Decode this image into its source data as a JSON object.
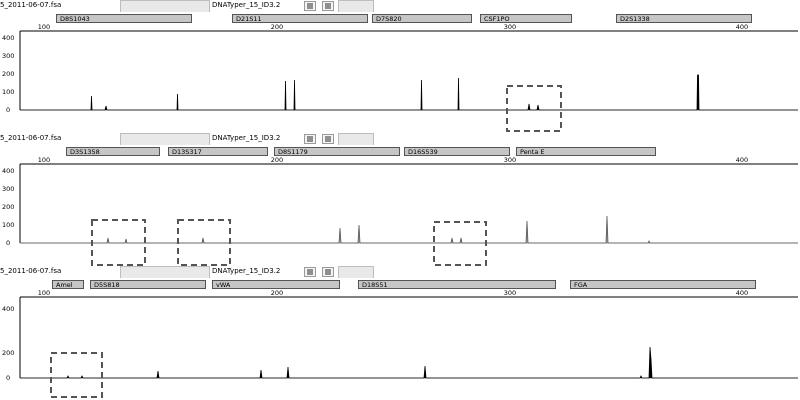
{
  "panels": [
    {
      "file": "5_2011-06-07.fsa",
      "kit": "DNATyper_15_ID3.2",
      "markers": [
        "D8S1043",
        "D21S11",
        "D7S820",
        "CSF1PO",
        "D2S1338"
      ],
      "x_ticks": [
        "100",
        "200",
        "300",
        "400"
      ],
      "y_ticks": [
        "400",
        "300",
        "200",
        "100",
        "0"
      ],
      "color": "#000000"
    },
    {
      "file": "5_2011-06-07.fsa",
      "kit": "DNATyper_15_ID3.2",
      "markers": [
        "D3S1358",
        "D13S317",
        "D8S1179",
        "D16S539",
        "Penta E"
      ],
      "x_ticks": [
        "100",
        "200",
        "300",
        "400"
      ],
      "y_ticks": [
        "400",
        "300",
        "200",
        "100",
        "0"
      ],
      "color": "#555555"
    },
    {
      "file": "5_2011-06-07.fsa",
      "kit": "DNATyper_15_ID3.2",
      "markers": [
        "Amel",
        "D5S818",
        "vWA",
        "D18S51",
        "FGA"
      ],
      "x_ticks": [
        "100",
        "200",
        "300",
        "400"
      ],
      "y_ticks": [
        "400",
        "200",
        "0"
      ],
      "color": "#000000"
    }
  ],
  "icons": [
    "panel-button-icon"
  ]
}
